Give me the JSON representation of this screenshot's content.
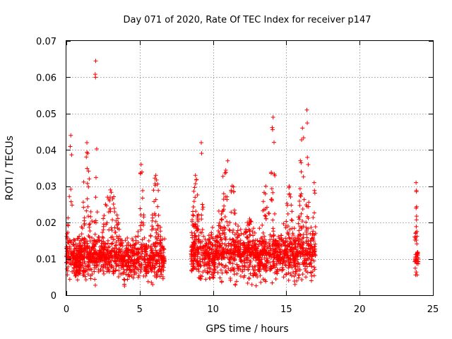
{
  "chart_data": {
    "type": "scatter",
    "title": "Day 071 of 2020, Rate Of TEC Index for receiver p147",
    "xlabel": "GPS time / hours",
    "ylabel": "ROTI / TECUs",
    "xlim": [
      0,
      25
    ],
    "ylim": [
      0,
      0.07
    ],
    "xticks": [
      0,
      5,
      10,
      15,
      20,
      25
    ],
    "yticks": [
      0,
      0.01,
      0.02,
      0.03,
      0.04,
      0.05,
      0.06,
      0.07
    ],
    "xtick_labels": [
      "0",
      "5",
      "10",
      "15",
      "20",
      "25"
    ],
    "ytick_labels": [
      "0",
      "0.01",
      "0.02",
      "0.03",
      "0.04",
      "0.05",
      "0.06",
      "0.07"
    ],
    "grid": true,
    "marker": "+",
    "color": "#ff0000",
    "segments": [
      {
        "x_start": 0.0,
        "x_end": 6.7,
        "baseline": 0.01,
        "spread": 0.004
      },
      {
        "x_start": 8.5,
        "x_end": 17.0,
        "baseline": 0.011,
        "spread": 0.005
      },
      {
        "x_start": 23.75,
        "x_end": 24.0,
        "baseline": 0.01,
        "spread": 0.004
      }
    ],
    "clusters": [
      {
        "x": 0.3,
        "width": 0.35,
        "max": 0.044
      },
      {
        "x": 1.4,
        "width": 0.5,
        "max": 0.042
      },
      {
        "x": 2.0,
        "width": 0.15,
        "max": 0.0645
      },
      {
        "x": 3.0,
        "width": 1.0,
        "max": 0.029
      },
      {
        "x": 5.1,
        "width": 0.3,
        "max": 0.036
      },
      {
        "x": 6.1,
        "width": 0.5,
        "max": 0.033
      },
      {
        "x": 8.8,
        "width": 0.4,
        "max": 0.033
      },
      {
        "x": 9.2,
        "width": 0.2,
        "max": 0.042
      },
      {
        "x": 11.0,
        "width": 1.0,
        "max": 0.037
      },
      {
        "x": 12.5,
        "width": 0.8,
        "max": 0.021
      },
      {
        "x": 13.6,
        "width": 0.5,
        "max": 0.03
      },
      {
        "x": 14.1,
        "width": 0.25,
        "max": 0.049
      },
      {
        "x": 15.2,
        "width": 0.4,
        "max": 0.03
      },
      {
        "x": 16.1,
        "width": 0.4,
        "max": 0.046
      },
      {
        "x": 16.4,
        "width": 0.2,
        "max": 0.051
      },
      {
        "x": 16.9,
        "width": 0.2,
        "max": 0.031
      },
      {
        "x": 23.85,
        "width": 0.15,
        "max": 0.031
      }
    ]
  }
}
